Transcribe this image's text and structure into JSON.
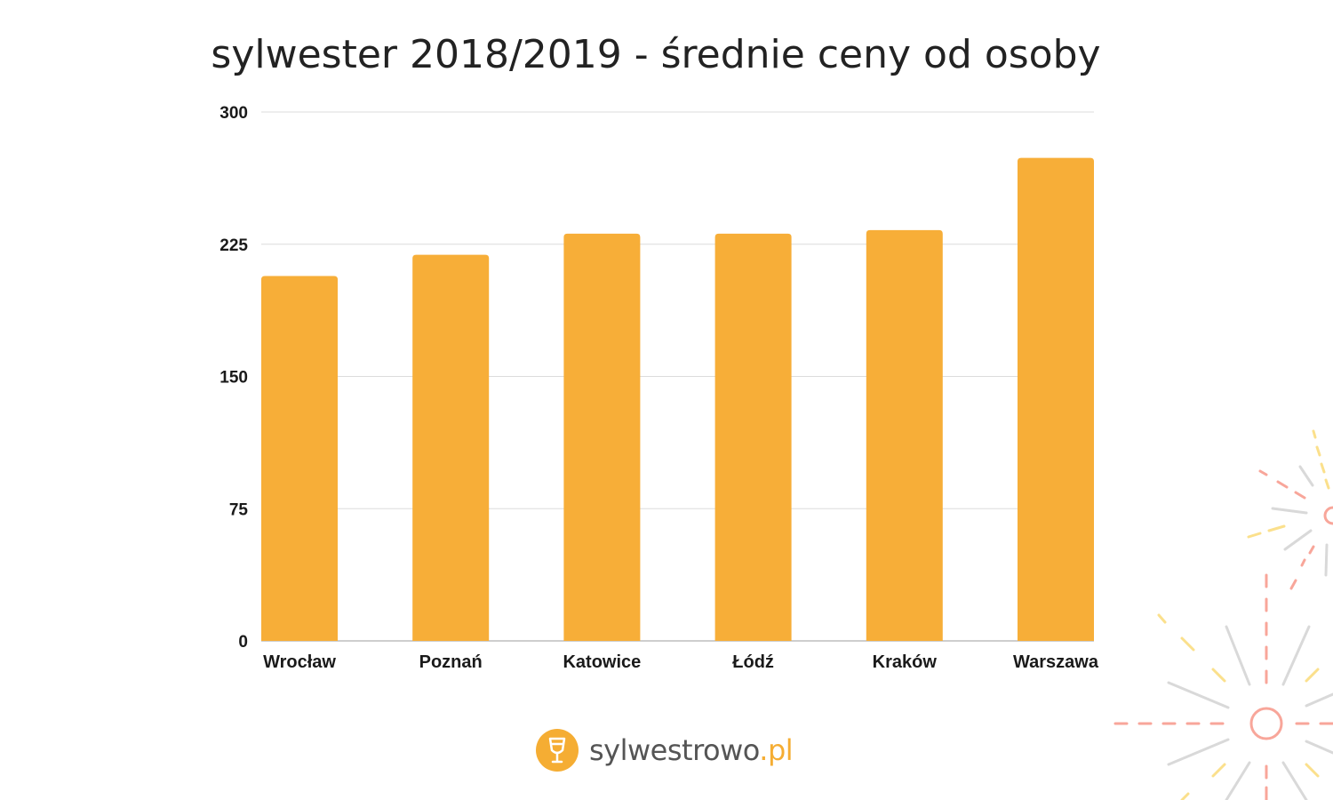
{
  "chart_data": {
    "type": "bar",
    "title": "sylwester 2018/2019 - średnie ceny od osoby",
    "categories": [
      "Wrocław",
      "Poznań",
      "Katowice",
      "Łódź",
      "Kraków",
      "Warszawa"
    ],
    "values": [
      207,
      219,
      231,
      231,
      233,
      274
    ],
    "yticks": [
      "0",
      "75",
      "150",
      "225",
      "300"
    ],
    "ylim": [
      0,
      300
    ],
    "grid": true,
    "bar_color": "#f7ae38",
    "xlabel": "",
    "ylabel": ""
  },
  "logo": {
    "name": "sylwestrowo",
    "tld": ".pl",
    "icon": "wine-glass-icon",
    "accent": "#f5ad33"
  },
  "decoration": {
    "icon": "fireworks-icon",
    "colors": [
      "#f8a69a",
      "#fbe08c",
      "#d9d9d9"
    ]
  }
}
